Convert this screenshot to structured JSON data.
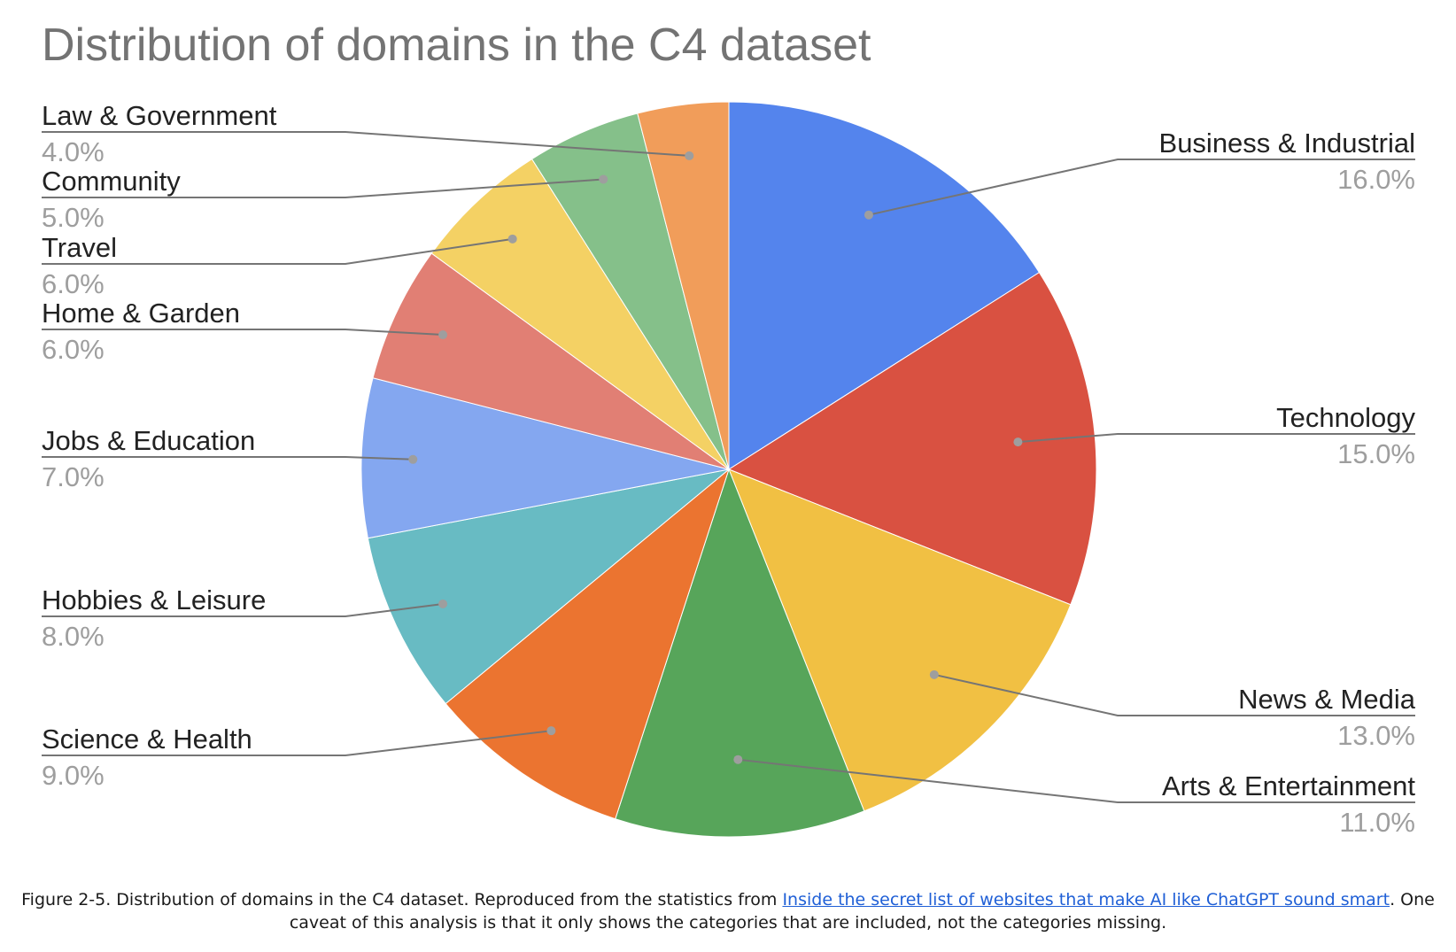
{
  "chart_data": {
    "type": "pie",
    "title": "Distribution of domains in the C4 dataset",
    "slices": [
      {
        "label": "Business & Industrial",
        "value": 16.0,
        "display": "16.0%",
        "color": "#5484ed"
      },
      {
        "label": "Technology",
        "value": 15.0,
        "display": "15.0%",
        "color": "#d95141"
      },
      {
        "label": "News & Media",
        "value": 13.0,
        "display": "13.0%",
        "color": "#f1c043"
      },
      {
        "label": "Arts & Entertainment",
        "value": 11.0,
        "display": "11.0%",
        "color": "#57a55a"
      },
      {
        "label": "Science & Health",
        "value": 9.0,
        "display": "9.0%",
        "color": "#eb7430"
      },
      {
        "label": "Hobbies & Leisure",
        "value": 8.0,
        "display": "8.0%",
        "color": "#68bbc3"
      },
      {
        "label": "Jobs & Education",
        "value": 7.0,
        "display": "7.0%",
        "color": "#84a7f0"
      },
      {
        "label": "Home & Garden",
        "value": 6.0,
        "display": "6.0%",
        "color": "#e17f74"
      },
      {
        "label": "Travel",
        "value": 6.0,
        "display": "6.0%",
        "color": "#f4d164"
      },
      {
        "label": "Community",
        "value": 5.0,
        "display": "5.0%",
        "color": "#85c08a"
      },
      {
        "label": "Law & Government",
        "value": 4.0,
        "display": "4.0%",
        "color": "#f19d5a"
      }
    ],
    "legend": "labels-with-leader-lines"
  },
  "caption": {
    "prefix": "Figure 2-5. Distribution of domains in the C4 dataset. Reproduced from the statistics from ",
    "link_text": "Inside the secret list of websites that make AI like ChatGPT sound smart",
    "suffix": ". One caveat of this analysis is that it only shows the categories that are included, not the categories missing."
  }
}
